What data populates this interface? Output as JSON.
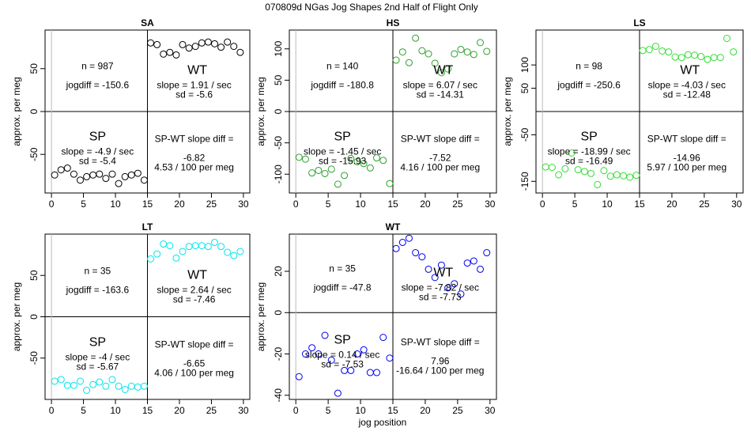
{
  "figure_title": "070809d   NGas Jog Shapes 2nd Half of Flight Only",
  "xlabel": "jog position",
  "ylabel": "approx. per meg",
  "chart_data": [
    {
      "type": "scatter",
      "title": "SA",
      "color": "#000000",
      "xlim": [
        -1,
        31
      ],
      "ylim": [
        -95,
        95
      ],
      "xticks": [
        0,
        5,
        10,
        15,
        20,
        25,
        30
      ],
      "yticks": [
        -50,
        0,
        50
      ],
      "x": [
        0.5,
        1.5,
        2.5,
        3.5,
        4.5,
        5.5,
        6.5,
        7.5,
        8.5,
        9.5,
        10.5,
        11.5,
        12.5,
        13.5,
        14.5,
        15.5,
        16.5,
        17.5,
        18.5,
        19.5,
        20.5,
        21.5,
        22.5,
        23.5,
        24.5,
        25.5,
        26.5,
        27.5,
        28.5,
        29.5
      ],
      "y": [
        -74,
        -68,
        -66,
        -73,
        -80,
        -76,
        -74,
        -73,
        -78,
        -73,
        -84,
        -76,
        -74,
        -72,
        -80,
        80,
        78,
        67,
        69,
        66,
        78,
        74,
        76,
        80,
        81,
        79,
        75,
        81,
        76,
        69
      ],
      "labels": {
        "n": "n = 987",
        "jogdiff": "jogdiff = -150.6",
        "wt": "WT",
        "wt_slope": "slope = 1.91 / sec",
        "wt_sd": "sd = -5.6",
        "sp": "SP",
        "sp_slope": "slope = -4.9 / sec",
        "sp_sd": "sd = -5.4",
        "diff_title": "SP-WT slope diff =",
        "diff_value": "-6.82",
        "diff_per": "4.53 / 100 per meg"
      }
    },
    {
      "type": "scatter",
      "title": "HS",
      "color": "#2ca02c",
      "xlim": [
        -1,
        31
      ],
      "ylim": [
        -130,
        130
      ],
      "xticks": [
        0,
        5,
        10,
        15,
        20,
        25,
        30
      ],
      "yticks": [
        -100,
        -50,
        0,
        50,
        100
      ],
      "x": [
        0.5,
        1.5,
        2.5,
        3.5,
        4.5,
        5.5,
        6.5,
        7.5,
        8.5,
        9.5,
        10.5,
        11.5,
        12.5,
        13.5,
        14.5,
        15.5,
        16.5,
        17.5,
        18.5,
        19.5,
        20.5,
        21.5,
        22.5,
        23.5,
        24.5,
        25.5,
        26.5,
        27.5,
        28.5,
        29.5
      ],
      "y": [
        -73,
        -76,
        -98,
        -94,
        -99,
        -92,
        -116,
        -102,
        -75,
        -80,
        -83,
        -90,
        -74,
        -78,
        -115,
        82,
        95,
        78,
        117,
        97,
        92,
        77,
        62,
        68,
        92,
        99,
        95,
        91,
        110,
        96
      ],
      "labels": {
        "n": "n = 140",
        "jogdiff": "jogdiff = -180.8",
        "wt": "WT",
        "wt_slope": "slope = 6.07 / sec",
        "wt_sd": "sd = -14.31",
        "sp": "SP",
        "sp_slope": "slope = -1.45 / sec",
        "sp_sd": "sd = -15.93",
        "diff_title": "SP-WT slope diff =",
        "diff_value": "-7.52",
        "diff_per": "4.16 / 100 per meg"
      }
    },
    {
      "type": "scatter",
      "title": "LS",
      "color": "#33dd33",
      "xlim": [
        -1,
        31
      ],
      "ylim": [
        -175,
        175
      ],
      "xticks": [
        0,
        5,
        10,
        15,
        20,
        25,
        30
      ],
      "yticks": [
        -150,
        -50,
        50,
        100
      ],
      "x": [
        0.5,
        1.5,
        2.5,
        3.5,
        4.5,
        5.5,
        6.5,
        7.5,
        8.5,
        9.5,
        10.5,
        11.5,
        12.5,
        13.5,
        14.5,
        15.5,
        16.5,
        17.5,
        18.5,
        19.5,
        20.5,
        21.5,
        22.5,
        23.5,
        24.5,
        25.5,
        26.5,
        27.5,
        28.5,
        29.5
      ],
      "y": [
        -119,
        -120,
        -136,
        -123,
        -89,
        -125,
        -129,
        -133,
        -157,
        -127,
        -139,
        -136,
        -138,
        -141,
        -137,
        131,
        133,
        140,
        130,
        128,
        117,
        116,
        122,
        121,
        118,
        112,
        116,
        116,
        157,
        128
      ],
      "labels": {
        "n": "n = 98",
        "jogdiff": "jogdiff = -250.6",
        "wt": "WT",
        "wt_slope": "slope = -4.03 / sec",
        "wt_sd": "sd = -12.48",
        "sp": "SP",
        "sp_slope": "slope = -18.99 / sec",
        "sp_sd": "sd = -16.49",
        "diff_title": "SP-WT slope diff =",
        "diff_value": "-14.96",
        "diff_per": "5.97 / 100 per meg"
      }
    },
    {
      "type": "scatter",
      "title": "LT",
      "color": "#00e5ee",
      "xlim": [
        -1,
        31
      ],
      "ylim": [
        -100,
        100
      ],
      "xticks": [
        0,
        5,
        10,
        15,
        20,
        25,
        30
      ],
      "yticks": [
        -50,
        0,
        50
      ],
      "x": [
        0.5,
        1.5,
        2.5,
        3.5,
        4.5,
        5.5,
        6.5,
        7.5,
        8.5,
        9.5,
        10.5,
        11.5,
        12.5,
        13.5,
        14.5,
        15.5,
        16.5,
        17.5,
        18.5,
        19.5,
        20.5,
        21.5,
        22.5,
        23.5,
        24.5,
        25.5,
        26.5,
        27.5,
        28.5,
        29.5
      ],
      "y": [
        -78,
        -76,
        -83,
        -83,
        -78,
        -89,
        -82,
        -79,
        -84,
        -76,
        -84,
        -88,
        -84,
        -85,
        -84,
        70,
        76,
        88,
        86,
        71,
        79,
        85,
        86,
        86,
        85,
        90,
        85,
        78,
        74,
        79
      ],
      "labels": {
        "n": "n = 35",
        "jogdiff": "jogdiff = -163.6",
        "wt": "WT",
        "wt_slope": "slope = 2.64 / sec",
        "wt_sd": "sd = -7.46",
        "sp": "SP",
        "sp_slope": "slope = -4 / sec",
        "sp_sd": "sd = -5.67",
        "diff_title": "SP-WT slope diff =",
        "diff_value": "-6.65",
        "diff_per": "4.06 / 100 per meg"
      }
    },
    {
      "type": "scatter",
      "title": "WT",
      "color": "#0000ee",
      "xlim": [
        -1,
        31
      ],
      "ylim": [
        -42,
        38
      ],
      "xticks": [
        0,
        5,
        10,
        15,
        20,
        25,
        30
      ],
      "yticks": [
        -40,
        -20,
        0,
        20
      ],
      "x": [
        0.5,
        1.5,
        2.5,
        3.5,
        4.5,
        5.5,
        6.5,
        7.5,
        8.5,
        9.5,
        10.5,
        11.5,
        12.5,
        13.5,
        14.5,
        15.5,
        16.5,
        17.5,
        18.5,
        19.5,
        20.5,
        21.5,
        22.5,
        23.5,
        24.5,
        25.5,
        26.5,
        27.5,
        28.5,
        29.5
      ],
      "y": [
        -31,
        -20,
        -17,
        -20,
        -11,
        -23,
        -39,
        -28,
        -28,
        -20,
        -18,
        -29,
        -29,
        -12,
        -22,
        31,
        34,
        36,
        29,
        27,
        21,
        17,
        23,
        12,
        14,
        9,
        24,
        25,
        21,
        29
      ],
      "labels": {
        "n": "n = 35",
        "jogdiff": "jogdiff = -47.8",
        "wt": "WT",
        "wt_slope": "slope = -7.82 / sec",
        "wt_sd": "sd = -7.73",
        "sp": "SP",
        "sp_slope": "slope = 0.14 / sec",
        "sp_sd": "sd = -7.53",
        "diff_title": "SP-WT slope diff =",
        "diff_value": "7.96",
        "diff_per": "-16.64 / 100 per meg"
      }
    }
  ]
}
